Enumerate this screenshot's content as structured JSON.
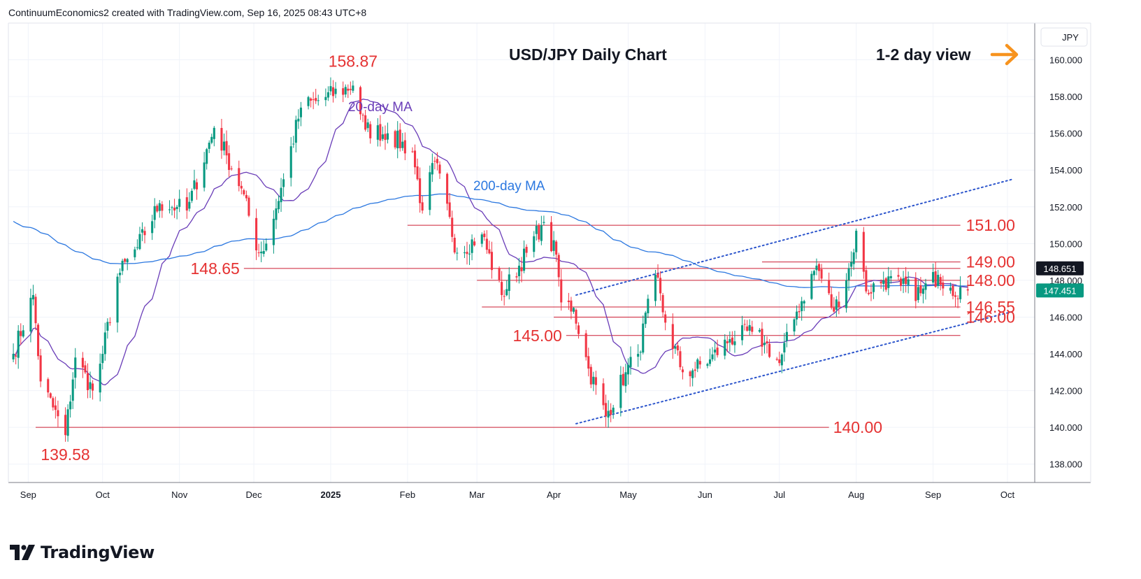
{
  "header": {
    "text": "ContinuumEconomics2 created with TradingView.com, Sep 16, 2025 08:43 UTC+8"
  },
  "branding": {
    "logo_text": "TradingView"
  },
  "chart_data": {
    "type": "candlestick",
    "title": "USD/JPY Daily Chart",
    "subtitle": "1-2 day view",
    "view_icon": "arrow-right-icon",
    "currency": "JPY",
    "y_range": [
      137,
      162
    ],
    "y_ticks": [
      "138.000",
      "140.000",
      "142.000",
      "144.000",
      "146.000",
      "148.000",
      "150.000",
      "152.000",
      "154.000",
      "156.000",
      "158.000",
      "160.000"
    ],
    "x_ticks": [
      {
        "label": "Sep",
        "date": "2024-09-01"
      },
      {
        "label": "Oct",
        "date": "2024-10-01"
      },
      {
        "label": "Nov",
        "date": "2024-11-01"
      },
      {
        "label": "Dec",
        "date": "2024-12-01"
      },
      {
        "label": "2025",
        "date": "2025-01-01",
        "bold": true
      },
      {
        "label": "Feb",
        "date": "2025-02-01"
      },
      {
        "label": "Mar",
        "date": "2025-03-01"
      },
      {
        "label": "Apr",
        "date": "2025-04-01"
      },
      {
        "label": "May",
        "date": "2025-05-01"
      },
      {
        "label": "Jun",
        "date": "2025-06-01"
      },
      {
        "label": "Jul",
        "date": "2025-07-01"
      },
      {
        "label": "Aug",
        "date": "2025-08-01"
      },
      {
        "label": "Sep",
        "date": "2025-09-01"
      },
      {
        "label": "Oct",
        "date": "2025-10-01"
      }
    ],
    "price_anchors": [
      [
        "2024-08-26",
        144.0
      ],
      [
        "2024-09-03",
        147.2
      ],
      [
        "2024-09-06",
        142.5
      ],
      [
        "2024-09-16",
        139.58
      ],
      [
        "2024-09-20",
        143.8
      ],
      [
        "2024-09-27",
        142.0
      ],
      [
        "2024-10-01",
        144.0
      ],
      [
        "2024-10-07",
        148.2
      ],
      [
        "2024-10-15",
        149.8
      ],
      [
        "2024-10-24",
        152.2
      ],
      [
        "2024-10-31",
        152.0
      ],
      [
        "2024-11-04",
        151.8
      ],
      [
        "2024-11-15",
        156.3
      ],
      [
        "2024-11-20",
        154.8
      ],
      [
        "2024-11-26",
        153.0
      ],
      [
        "2024-12-03",
        149.5
      ],
      [
        "2024-12-06",
        150.0
      ],
      [
        "2024-12-13",
        153.5
      ],
      [
        "2024-12-20",
        157.4
      ],
      [
        "2024-12-27",
        157.8
      ],
      [
        "2025-01-10",
        158.6
      ],
      [
        "2025-01-15",
        156.2
      ],
      [
        "2025-01-24",
        156.0
      ],
      [
        "2025-02-03",
        155.0
      ],
      [
        "2025-02-07",
        151.8
      ],
      [
        "2025-02-12",
        154.5
      ],
      [
        "2025-02-21",
        149.5
      ],
      [
        "2025-03-03",
        150.5
      ],
      [
        "2025-03-11",
        147.2
      ],
      [
        "2025-03-21",
        149.5
      ],
      [
        "2025-03-27",
        151.0
      ],
      [
        "2025-04-02",
        149.4
      ],
      [
        "2025-04-04",
        146.8
      ],
      [
        "2025-04-09",
        146.5
      ],
      [
        "2025-04-15",
        143.2
      ],
      [
        "2025-04-22",
        140.6
      ],
      [
        "2025-04-30",
        143.0
      ],
      [
        "2025-05-05",
        144.0
      ],
      [
        "2025-05-12",
        148.3
      ],
      [
        "2025-05-16",
        145.7
      ],
      [
        "2025-05-23",
        143.0
      ],
      [
        "2025-05-27",
        143.1
      ],
      [
        "2025-06-03",
        143.7
      ],
      [
        "2025-06-11",
        144.8
      ],
      [
        "2025-06-20",
        145.2
      ],
      [
        "2025-06-25",
        144.6
      ],
      [
        "2025-07-01",
        143.5
      ],
      [
        "2025-07-08",
        146.3
      ],
      [
        "2025-07-16",
        148.8
      ],
      [
        "2025-07-23",
        146.3
      ],
      [
        "2025-07-30",
        149.0
      ],
      [
        "2025-08-01",
        150.7
      ],
      [
        "2025-08-05",
        147.4
      ],
      [
        "2025-08-12",
        148.0
      ],
      [
        "2025-08-19",
        147.7
      ],
      [
        "2025-08-27",
        147.3
      ],
      [
        "2025-09-03",
        148.3
      ],
      [
        "2025-09-08",
        147.6
      ],
      [
        "2025-09-15",
        147.45
      ]
    ],
    "series": [
      {
        "name": "20-day MA",
        "color": "#6a3db8"
      },
      {
        "name": "200-day MA",
        "color": "#2c78e0"
      }
    ],
    "level_lines": [
      {
        "label": "151.00",
        "value": 151.0,
        "from": "2025-02-01",
        "to": "2025-09-12",
        "label_side": "right"
      },
      {
        "label": "149.00",
        "value": 149.0,
        "from": "2025-06-24",
        "to": "2025-09-12",
        "label_side": "right"
      },
      {
        "label": "148.65",
        "value": 148.65,
        "from": "2024-11-27",
        "to": "2025-09-12",
        "label_side": "left"
      },
      {
        "label": "148.00",
        "value": 148.0,
        "from": "2025-03-01",
        "to": "2025-09-12",
        "label_side": "right"
      },
      {
        "label": "146.55",
        "value": 146.55,
        "from": "2025-03-03",
        "to": "2025-09-12",
        "label_side": "right"
      },
      {
        "label": "146.00",
        "value": 146.0,
        "from": "2025-04-01",
        "to": "2025-09-12",
        "label_side": "right"
      },
      {
        "label": "145.00",
        "value": 145.0,
        "from": "2025-04-06",
        "to": "2025-09-12",
        "label_side": "left"
      },
      {
        "label": "140.00",
        "value": 140.0,
        "from": "2024-09-04",
        "to": "2025-07-21",
        "label_side": "right"
      }
    ],
    "channel_lines": [
      {
        "from": [
          "2025-04-10",
          147.2
        ],
        "to": [
          "2025-10-03",
          153.5
        ]
      },
      {
        "from": [
          "2025-04-10",
          140.2
        ],
        "to": [
          "2025-10-03",
          146.3
        ]
      }
    ],
    "annotations": [
      {
        "text": "158.87",
        "date": "2025-01-10",
        "value": 158.87,
        "position": "above"
      },
      {
        "text": "139.58",
        "date": "2024-09-16",
        "value": 139.58,
        "position": "below"
      },
      {
        "text": "20-day MA",
        "date": "2025-01-21",
        "value": 157.2,
        "color": "#6a3db8"
      },
      {
        "text": "200-day MA",
        "date": "2025-03-14",
        "value": 152.9,
        "color": "#2c78e0"
      }
    ],
    "price_labels": [
      {
        "value": 148.651,
        "text": "148.651",
        "bg": "#131722"
      },
      {
        "value": 147.451,
        "text": "147.451",
        "bg": "#089981"
      }
    ],
    "colors": {
      "up": "#089981",
      "down": "#f23645",
      "level": "#cc1f35",
      "label": "#e53232",
      "channel": "#2c55cc",
      "grid": "#f0f3fa",
      "accent": "#f7931e"
    }
  }
}
